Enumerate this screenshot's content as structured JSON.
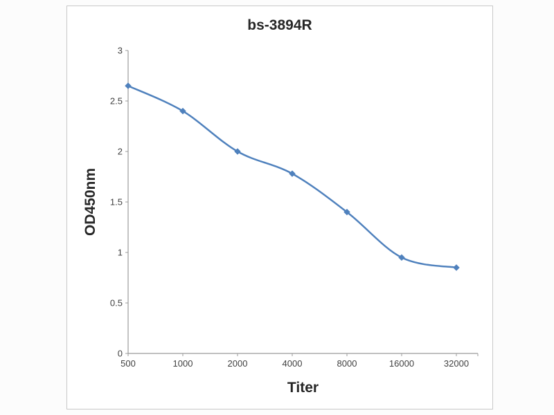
{
  "chart_data": {
    "type": "line",
    "title": "bs-3894R",
    "xlabel": "Titer",
    "ylabel": "OD450nm",
    "categories": [
      "500",
      "1000",
      "2000",
      "4000",
      "8000",
      "16000",
      "32000"
    ],
    "values": [
      2.65,
      2.4,
      2.0,
      1.78,
      1.4,
      0.95,
      0.85
    ],
    "yticks": [
      "0",
      "0.5",
      "1",
      "1.5",
      "2",
      "2.5",
      "3"
    ],
    "ytick_values": [
      0,
      0.5,
      1,
      1.5,
      2,
      2.5,
      3
    ],
    "ylim": [
      0,
      3
    ],
    "grid": false,
    "legend": "none",
    "line_color": "#4f81bd",
    "marker": "diamond",
    "marker_color": "#4f81bd",
    "axis_color": "#9b9b9b",
    "tick_text_color": "#3f3f3f"
  }
}
